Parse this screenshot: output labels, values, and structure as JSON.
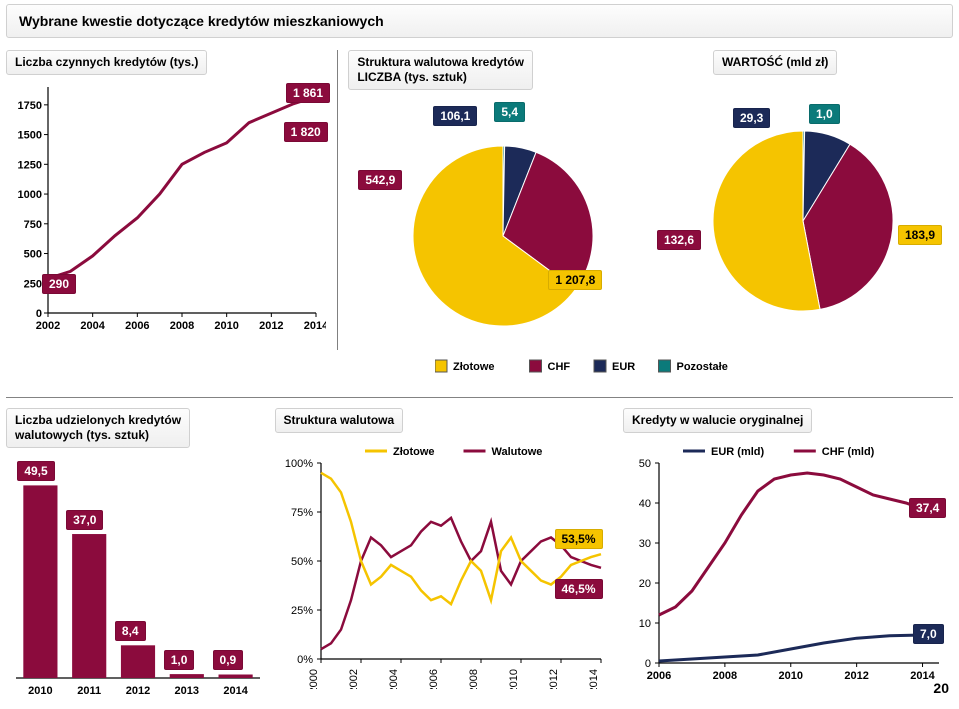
{
  "page": {
    "title": "Wybrane kwestie dotyczące kredytów mieszkaniowych",
    "number": "20"
  },
  "colors": {
    "gold": "#f5c400",
    "maroon": "#8b0b3d",
    "navy": "#1c2a58",
    "teal": "#0b7a7a",
    "text": "#000000",
    "grid": "#d9d9d9",
    "white": "#ffffff"
  },
  "top": {
    "lineChart": {
      "title": "Liczba czynnych kredytów (tys.)",
      "type": "line",
      "x_ticks": [
        "2002",
        "2004",
        "2006",
        "2008",
        "2010",
        "2012",
        "2014"
      ],
      "y_ticks": [
        0,
        250,
        500,
        750,
        1000,
        1250,
        1500,
        1750
      ],
      "ylim": [
        0,
        1900
      ],
      "points": [
        [
          2002,
          290
        ],
        [
          2003,
          350
        ],
        [
          2004,
          480
        ],
        [
          2005,
          650
        ],
        [
          2006,
          800
        ],
        [
          2007,
          1000
        ],
        [
          2008,
          1250
        ],
        [
          2009,
          1350
        ],
        [
          2010,
          1430
        ],
        [
          2011,
          1600
        ],
        [
          2012,
          1680
        ],
        [
          2013,
          1760
        ],
        [
          2014,
          1820
        ]
      ],
      "line_color": "#8b0b3d",
      "line_width": 3,
      "badges": {
        "start": {
          "text": "290",
          "bg": "#8b0b3d",
          "fg": "#ffffff"
        },
        "top": {
          "text": "1 861",
          "bg": "#8b0b3d",
          "fg": "#ffffff"
        },
        "end": {
          "text": "1 820",
          "bg": "#8b0b3d",
          "fg": "#ffffff"
        }
      }
    },
    "pieCount": {
      "title": "Struktura walutowa kredytów\nLICZBA (tys. sztuk)",
      "type": "pie",
      "slices": [
        {
          "label": "Złotowe",
          "value": 1207.8,
          "color": "#f5c400",
          "badge_bg": "#f5c400",
          "badge_fg": "#000000",
          "text": "1 207,8"
        },
        {
          "label": "CHF",
          "value": 542.9,
          "color": "#8b0b3d",
          "badge_bg": "#8b0b3d",
          "badge_fg": "#ffffff",
          "text": "542,9"
        },
        {
          "label": "EUR",
          "value": 106.1,
          "color": "#1c2a58",
          "badge_bg": "#1c2a58",
          "badge_fg": "#ffffff",
          "text": "106,1"
        },
        {
          "label": "Pozostałe",
          "value": 5.4,
          "color": "#0b7a7a",
          "badge_bg": "#0b7a7a",
          "badge_fg": "#ffffff",
          "text": "5,4"
        }
      ]
    },
    "pieValue": {
      "title": "WARTOŚĆ (mld zł)",
      "type": "pie",
      "slices": [
        {
          "label": "Złotowe",
          "value": 183.9,
          "color": "#f5c400",
          "badge_bg": "#f5c400",
          "badge_fg": "#000000",
          "text": "183,9"
        },
        {
          "label": "CHF",
          "value": 132.6,
          "color": "#8b0b3d",
          "badge_bg": "#8b0b3d",
          "badge_fg": "#ffffff",
          "text": "132,6"
        },
        {
          "label": "EUR",
          "value": 29.3,
          "color": "#1c2a58",
          "badge_bg": "#1c2a58",
          "badge_fg": "#ffffff",
          "text": "29,3"
        },
        {
          "label": "Pozostałe",
          "value": 1.0,
          "color": "#0b7a7a",
          "badge_bg": "#0b7a7a",
          "badge_fg": "#ffffff",
          "text": "1,0"
        }
      ]
    },
    "legend": [
      {
        "label": "Złotowe",
        "color": "#f5c400"
      },
      {
        "label": "CHF",
        "color": "#8b0b3d"
      },
      {
        "label": "EUR",
        "color": "#1c2a58"
      },
      {
        "label": "Pozostałe",
        "color": "#0b7a7a"
      }
    ]
  },
  "bottom": {
    "barChart": {
      "title": "Liczba udzielonych kredytów walutowych (tys. sztuk)",
      "type": "bar",
      "categories": [
        "2010",
        "2011",
        "2012",
        "2013",
        "2014"
      ],
      "values": [
        49.5,
        37.0,
        8.4,
        1.0,
        0.9
      ],
      "labels": [
        "49,5",
        "37,0",
        "8,4",
        "1,0",
        "0,9"
      ],
      "bar_color": "#8b0b3d",
      "label_bg": "#8b0b3d",
      "label_fg": "#ffffff",
      "ylim": [
        0,
        55
      ]
    },
    "structLine": {
      "title": "Struktura walutowa",
      "type": "line",
      "legend": [
        {
          "label": "Złotowe",
          "color": "#f5c400"
        },
        {
          "label": "Walutowe",
          "color": "#8b0b3d"
        }
      ],
      "y_ticks_label": [
        "0%",
        "25%",
        "50%",
        "75%",
        "100%"
      ],
      "y_ticks": [
        0,
        25,
        50,
        75,
        100
      ],
      "x_ticks": [
        "2000",
        "2002",
        "2004",
        "2006",
        "2008",
        "2010",
        "2012",
        "2014"
      ],
      "series": {
        "zlotowe": {
          "color": "#f5c400",
          "points": [
            [
              2000,
              95
            ],
            [
              2000.5,
              92
            ],
            [
              2001,
              85
            ],
            [
              2001.5,
              70
            ],
            [
              2002,
              50
            ],
            [
              2002.5,
              38
            ],
            [
              2003,
              42
            ],
            [
              2003.5,
              48
            ],
            [
              2004,
              45
            ],
            [
              2004.5,
              42
            ],
            [
              2005,
              35
            ],
            [
              2005.5,
              30
            ],
            [
              2006,
              32
            ],
            [
              2006.5,
              28
            ],
            [
              2007,
              40
            ],
            [
              2007.5,
              50
            ],
            [
              2008,
              45
            ],
            [
              2008.5,
              30
            ],
            [
              2009,
              55
            ],
            [
              2009.5,
              62
            ],
            [
              2010,
              50
            ],
            [
              2010.5,
              45
            ],
            [
              2011,
              40
            ],
            [
              2011.5,
              38
            ],
            [
              2012,
              42
            ],
            [
              2012.5,
              48
            ],
            [
              2013,
              50
            ],
            [
              2013.5,
              52
            ],
            [
              2014,
              53.5
            ]
          ],
          "end_label": "53,5%"
        },
        "walutowe": {
          "color": "#8b0b3d",
          "points": [
            [
              2000,
              5
            ],
            [
              2000.5,
              8
            ],
            [
              2001,
              15
            ],
            [
              2001.5,
              30
            ],
            [
              2002,
              50
            ],
            [
              2002.5,
              62
            ],
            [
              2003,
              58
            ],
            [
              2003.5,
              52
            ],
            [
              2004,
              55
            ],
            [
              2004.5,
              58
            ],
            [
              2005,
              65
            ],
            [
              2005.5,
              70
            ],
            [
              2006,
              68
            ],
            [
              2006.5,
              72
            ],
            [
              2007,
              60
            ],
            [
              2007.5,
              50
            ],
            [
              2008,
              55
            ],
            [
              2008.5,
              70
            ],
            [
              2009,
              45
            ],
            [
              2009.5,
              38
            ],
            [
              2010,
              50
            ],
            [
              2010.5,
              55
            ],
            [
              2011,
              60
            ],
            [
              2011.5,
              62
            ],
            [
              2012,
              58
            ],
            [
              2012.5,
              52
            ],
            [
              2013,
              50
            ],
            [
              2013.5,
              48
            ],
            [
              2014,
              46.5
            ]
          ],
          "end_label": "46,5%"
        }
      }
    },
    "fxLine": {
      "title": "Kredyty w walucie oryginalnej",
      "type": "line",
      "legend": [
        {
          "label": "EUR (mld)",
          "color": "#1c2a58"
        },
        {
          "label": "CHF (mld)",
          "color": "#8b0b3d"
        }
      ],
      "y_ticks": [
        0,
        10,
        20,
        30,
        40,
        50
      ],
      "x_ticks": [
        "2006",
        "2008",
        "2010",
        "2012",
        "2014"
      ],
      "series": {
        "eur": {
          "color": "#1c2a58",
          "points": [
            [
              2006,
              0.5
            ],
            [
              2007,
              1.0
            ],
            [
              2008,
              1.5
            ],
            [
              2009,
              2.0
            ],
            [
              2010,
              3.5
            ],
            [
              2011,
              5.0
            ],
            [
              2012,
              6.2
            ],
            [
              2013,
              6.8
            ],
            [
              2014,
              7.0
            ]
          ],
          "end_label": "7,0"
        },
        "chf": {
          "color": "#8b0b3d",
          "points": [
            [
              2006,
              12
            ],
            [
              2006.5,
              14
            ],
            [
              2007,
              18
            ],
            [
              2007.5,
              24
            ],
            [
              2008,
              30
            ],
            [
              2008.5,
              37
            ],
            [
              2009,
              43
            ],
            [
              2009.5,
              46
            ],
            [
              2010,
              47
            ],
            [
              2010.5,
              47.5
            ],
            [
              2011,
              47
            ],
            [
              2011.5,
              46
            ],
            [
              2012,
              44
            ],
            [
              2012.5,
              42
            ],
            [
              2013,
              41
            ],
            [
              2013.5,
              40
            ],
            [
              2014,
              38.5
            ],
            [
              2014.5,
              37.4
            ]
          ],
          "end_label": "37,4"
        }
      }
    }
  }
}
